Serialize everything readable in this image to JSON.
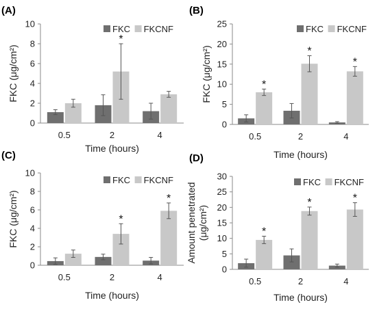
{
  "colors": {
    "FKC": "#6f6f6f",
    "FKCNF": "#c8c8c8",
    "axis": "#8a8a8a",
    "err": "#555555"
  },
  "chart_data": [
    {
      "panel": "(A)",
      "type": "bar",
      "categories": [
        "0.5",
        "2",
        "4"
      ],
      "xlabel": "Time (hours)",
      "ylabel": "FKC (μg/cm²)",
      "ylim": [
        0,
        10
      ],
      "yticks": [
        0,
        2,
        4,
        6,
        8,
        10
      ],
      "legend": "top-right",
      "series": [
        {
          "name": "FKC",
          "values": [
            1.1,
            1.8,
            1.2
          ],
          "errors": [
            0.25,
            1.05,
            0.8
          ]
        },
        {
          "name": "FKCNF",
          "values": [
            2.0,
            5.2,
            2.9
          ],
          "errors": [
            0.4,
            2.8,
            0.3
          ]
        }
      ],
      "significance": [
        "",
        "*",
        ""
      ]
    },
    {
      "panel": "(B)",
      "type": "bar",
      "categories": [
        "0.5",
        "2",
        "4"
      ],
      "xlabel": "Time (hours)",
      "ylabel": "FKC (μg/cm²)",
      "ylim": [
        0,
        25
      ],
      "yticks": [
        0,
        5,
        10,
        15,
        20,
        25
      ],
      "legend": "top-right",
      "series": [
        {
          "name": "FKC",
          "values": [
            1.5,
            3.4,
            0.5
          ],
          "errors": [
            0.9,
            1.8,
            0.2
          ]
        },
        {
          "name": "FKCNF",
          "values": [
            8.0,
            15.1,
            13.2
          ],
          "errors": [
            0.8,
            2.0,
            1.2
          ]
        }
      ],
      "significance": [
        "*",
        "*",
        "*"
      ]
    },
    {
      "panel": "(C)",
      "type": "bar",
      "categories": [
        "0.5",
        "2",
        "4"
      ],
      "xlabel": "Time (hours)",
      "ylabel": "FKC (μg/cm²)",
      "ylim": [
        0,
        10
      ],
      "yticks": [
        0,
        2,
        4,
        6,
        8,
        10
      ],
      "legend": "top-right",
      "series": [
        {
          "name": "FKC",
          "values": [
            0.45,
            0.9,
            0.5
          ],
          "errors": [
            0.35,
            0.3,
            0.35
          ]
        },
        {
          "name": "FKCNF",
          "values": [
            1.25,
            3.4,
            5.9
          ],
          "errors": [
            0.4,
            1.1,
            0.85
          ]
        }
      ],
      "significance": [
        "",
        "*",
        "*"
      ]
    },
    {
      "panel": "(D)",
      "type": "bar",
      "categories": [
        "0.5",
        "2",
        "4"
      ],
      "xlabel": "Time (hours)",
      "ylabel": "Amount penetrated (μg/cm²)",
      "ylim": [
        0,
        30
      ],
      "yticks": [
        0,
        5,
        10,
        15,
        20,
        25,
        30
      ],
      "legend": "top-right",
      "series": [
        {
          "name": "FKC",
          "values": [
            2.0,
            4.5,
            1.2
          ],
          "errors": [
            1.3,
            2.1,
            0.5
          ]
        },
        {
          "name": "FKCNF",
          "values": [
            9.5,
            18.8,
            19.3
          ],
          "errors": [
            1.2,
            1.3,
            2.2
          ]
        }
      ],
      "significance": [
        "*",
        "*",
        "*"
      ]
    }
  ]
}
